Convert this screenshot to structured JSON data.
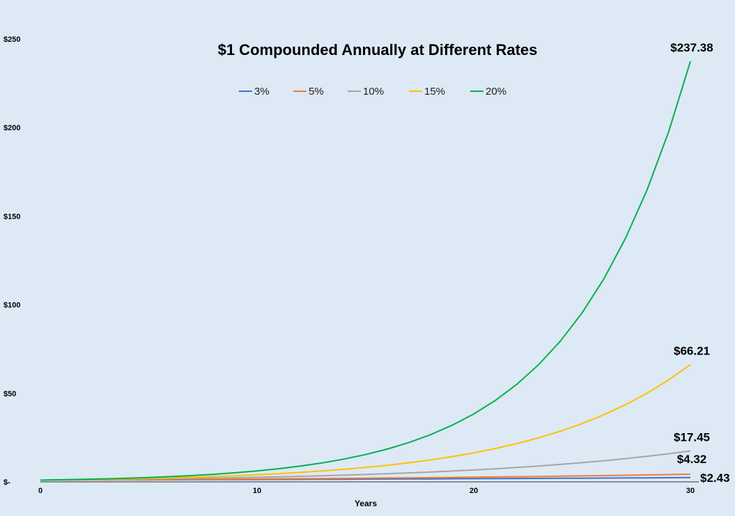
{
  "chart_data": {
    "type": "line",
    "title": "$1 Compounded Annually at Different Rates",
    "xlabel": "Years",
    "ylabel": "",
    "xlim": [
      0,
      30
    ],
    "ylim": [
      0,
      250
    ],
    "x_ticks": [
      0,
      10,
      20,
      30
    ],
    "y_tick_labels": [
      "$-",
      "$50",
      "$100",
      "$150",
      "$200",
      "$250"
    ],
    "y_tick_values": [
      0,
      50,
      100,
      150,
      200,
      250
    ],
    "grid": false,
    "legend_position": "top-center",
    "x": [
      0,
      1,
      2,
      3,
      4,
      5,
      6,
      7,
      8,
      9,
      10,
      11,
      12,
      13,
      14,
      15,
      16,
      17,
      18,
      19,
      20,
      21,
      22,
      23,
      24,
      25,
      26,
      27,
      28,
      29,
      30
    ],
    "series": [
      {
        "name": "3%",
        "rate": 0.03,
        "color": "#4472c4",
        "end_label": "$2.43"
      },
      {
        "name": "5%",
        "rate": 0.05,
        "color": "#ed7d31",
        "end_label": "$4.32"
      },
      {
        "name": "10%",
        "rate": 0.1,
        "color": "#a5a5a5",
        "end_label": "$17.45"
      },
      {
        "name": "15%",
        "rate": 0.15,
        "color": "#ffc000",
        "end_label": "$66.21"
      },
      {
        "name": "20%",
        "rate": 0.2,
        "color": "#00b050",
        "end_label": "$237.38"
      }
    ]
  }
}
